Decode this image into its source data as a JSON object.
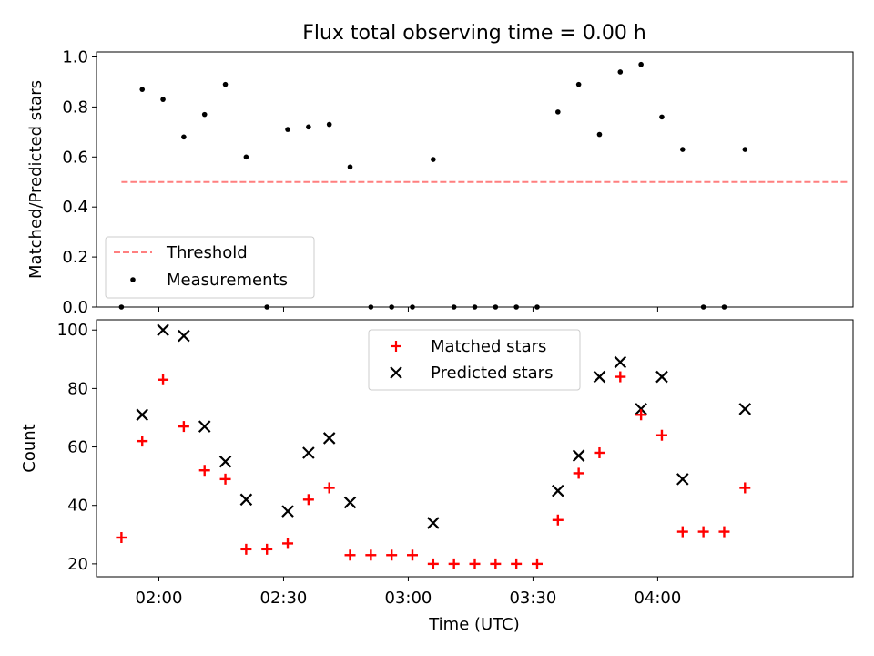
{
  "chart_data": [
    {
      "type": "scatter",
      "title": "Flux total observing time = 0.00 h",
      "xlabel": "",
      "ylabel": "Matched/Predicted stars",
      "xlim": [
        "01:45",
        "04:47"
      ],
      "ylim": [
        0,
        1.02
      ],
      "yticks": [
        0.0,
        0.2,
        0.4,
        0.6,
        0.8,
        1.0
      ],
      "ytick_labels": [
        "0.0",
        "0.2",
        "0.4",
        "0.6",
        "0.8",
        "1.0"
      ],
      "grid": false,
      "legend": {
        "placement": "lower-left"
      },
      "series": [
        {
          "name": "Threshold",
          "style": "dashed-line",
          "color": "#ff7f7f",
          "x": [
            "01:51",
            "04:46"
          ],
          "y": [
            0.5,
            0.5
          ]
        },
        {
          "name": "Measurements",
          "style": "dot",
          "color": "#000000",
          "x": [
            "01:51",
            "01:56",
            "02:01",
            "02:06",
            "02:11",
            "02:16",
            "02:21",
            "02:26",
            "02:31",
            "02:36",
            "02:41",
            "02:46",
            "02:51",
            "02:56",
            "03:01",
            "03:06",
            "03:11",
            "03:16",
            "03:21",
            "03:26",
            "03:31",
            "03:36",
            "03:41",
            "03:46",
            "03:51",
            "03:56",
            "04:01",
            "04:06",
            "04:11",
            "04:16",
            "04:21"
          ],
          "y": [
            0.0,
            0.87,
            0.83,
            0.68,
            0.77,
            0.89,
            0.6,
            0.0,
            0.71,
            0.72,
            0.73,
            0.56,
            0.0,
            0.0,
            0.0,
            0.59,
            0.0,
            0.0,
            0.0,
            0.0,
            0.0,
            0.78,
            0.89,
            0.69,
            0.94,
            0.97,
            0.76,
            0.63,
            0.0,
            0.0,
            0.63
          ]
        }
      ]
    },
    {
      "type": "scatter",
      "title": "",
      "xlabel": "Time (UTC)",
      "ylabel": "Count",
      "xlim": [
        "01:45",
        "04:47"
      ],
      "ylim": [
        15.6,
        103.5
      ],
      "yticks": [
        20,
        40,
        60,
        80,
        100
      ],
      "ytick_labels": [
        "20",
        "40",
        "60",
        "80",
        "100"
      ],
      "xticks": [
        "02:00",
        "02:30",
        "03:00",
        "03:30",
        "04:00"
      ],
      "xtick_labels": [
        "02:00",
        "02:30",
        "03:00",
        "03:30",
        "04:00"
      ],
      "grid": false,
      "legend": {
        "placement": "upper-center"
      },
      "series": [
        {
          "name": "Matched stars",
          "style": "plus",
          "color": "#ff0000",
          "x": [
            "01:51",
            "01:56",
            "02:01",
            "02:06",
            "02:11",
            "02:16",
            "02:21",
            "02:26",
            "02:31",
            "02:36",
            "02:41",
            "02:46",
            "02:51",
            "02:56",
            "03:01",
            "03:06",
            "03:11",
            "03:16",
            "03:21",
            "03:26",
            "03:31",
            "03:36",
            "03:41",
            "03:46",
            "03:51",
            "03:56",
            "04:01",
            "04:06",
            "04:11",
            "04:16",
            "04:21"
          ],
          "y": [
            29,
            62,
            83,
            67,
            52,
            49,
            25,
            25,
            27,
            42,
            46,
            23,
            23,
            23,
            23,
            20,
            20,
            20,
            20,
            20,
            20,
            35,
            51,
            58,
            84,
            71,
            64,
            31,
            31,
            31,
            46
          ]
        },
        {
          "name": "Predicted stars",
          "style": "x",
          "color": "#000000",
          "x": [
            "01:56",
            "02:01",
            "02:06",
            "02:11",
            "02:16",
            "02:21",
            "02:31",
            "02:36",
            "02:41",
            "02:46",
            "03:06",
            "03:36",
            "03:41",
            "03:46",
            "03:51",
            "03:56",
            "04:01",
            "04:06",
            "04:21"
          ],
          "y": [
            71,
            100,
            98,
            67,
            55,
            42,
            38,
            58,
            63,
            41,
            34,
            45,
            57,
            84,
            89,
            73,
            84,
            49,
            73
          ]
        }
      ]
    }
  ]
}
